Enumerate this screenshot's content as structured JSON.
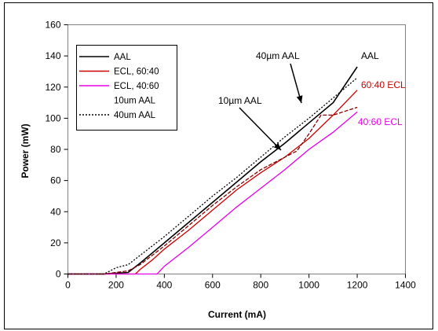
{
  "chart_data": {
    "type": "line",
    "xlabel": "Current (mA)",
    "ylabel": "Power (mW)",
    "xlim": [
      0,
      1400
    ],
    "ylim": [
      0,
      160
    ],
    "x_ticks": [
      "0",
      "200",
      "400",
      "600",
      "800",
      "1000",
      "1200",
      "1400"
    ],
    "y_ticks": [
      "0",
      "20",
      "40",
      "60",
      "80",
      "100",
      "120",
      "140",
      "160"
    ],
    "grid": false,
    "legend_position": "top-left",
    "series": [
      {
        "name": "AAL",
        "color": "#000000",
        "style": "solid",
        "x": [
          0,
          150,
          200,
          250,
          300,
          400,
          500,
          600,
          700,
          800,
          900,
          1000,
          1100,
          1200
        ],
        "y": [
          0,
          0,
          0.5,
          1,
          7,
          20,
          33,
          46,
          59,
          72,
          84,
          97,
          110,
          133
        ]
      },
      {
        "name": "ECL, 60:40",
        "color": "#cc0000",
        "style": "solid",
        "x": [
          0,
          200,
          280,
          300,
          350,
          400,
          500,
          600,
          700,
          800,
          900,
          1000,
          1100,
          1200
        ],
        "y": [
          0,
          0,
          0,
          3,
          9,
          16,
          28,
          41,
          54,
          65,
          75,
          87,
          102,
          118
        ]
      },
      {
        "name": "ECL, 40:60",
        "color": "#e600e6",
        "style": "solid",
        "x": [
          0,
          200,
          370,
          400,
          500,
          600,
          700,
          800,
          900,
          1000,
          1100,
          1200
        ],
        "y": [
          0,
          0,
          0,
          5,
          17,
          30,
          43,
          55,
          67,
          80,
          91,
          104
        ]
      },
      {
        "name": "10um AAL",
        "color": "#800000",
        "style": "dashed",
        "x": [
          0,
          150,
          250,
          300,
          400,
          500,
          600,
          700,
          800,
          900,
          950,
          1000,
          1050,
          1100,
          1200
        ],
        "y": [
          0,
          0,
          2,
          6,
          18,
          31,
          44,
          56,
          67,
          75,
          79,
          90,
          102,
          102,
          107
        ]
      },
      {
        "name": "40um AAL",
        "color": "#000000",
        "style": "dotted",
        "x": [
          0,
          150,
          200,
          250,
          300,
          400,
          500,
          600,
          700,
          800,
          900,
          1000,
          1100,
          1200
        ],
        "y": [
          0,
          0,
          4,
          6,
          12,
          24,
          37,
          50,
          62,
          75,
          88,
          100,
          113,
          126
        ]
      }
    ],
    "annotations": [
      {
        "text": "AAL",
        "color": "#000000"
      },
      {
        "text": "60:40 ECL",
        "color": "#cc0000"
      },
      {
        "text": "40:60 ECL",
        "color": "#e600e6"
      },
      {
        "text": "40µm AAL",
        "color": "#000000"
      },
      {
        "text": "10µm AAL",
        "color": "#000000"
      }
    ]
  }
}
